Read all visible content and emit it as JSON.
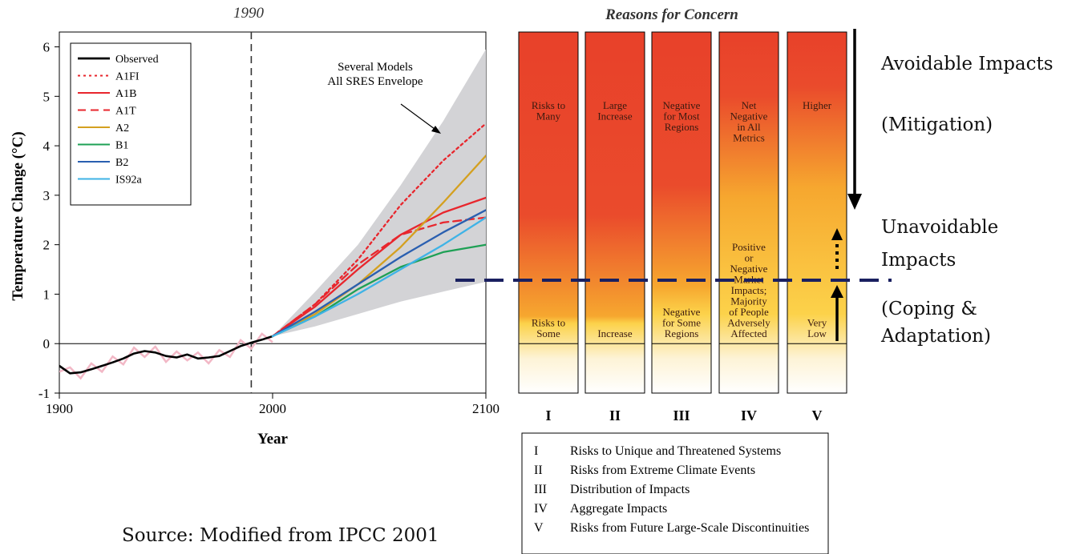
{
  "chart_data": [
    {
      "type": "line",
      "title": "1990",
      "xlabel": "Year",
      "ylabel": "Temperature Change (°C)",
      "xlim": [
        1900,
        2100
      ],
      "ylim": [
        -1,
        6.3
      ],
      "x_ticks": [
        "1900",
        "2000",
        "2100"
      ],
      "y_ticks": [
        "-1",
        "0",
        "1",
        "2",
        "3",
        "4",
        "5",
        "6"
      ],
      "vline_year": 1990,
      "grid": false,
      "legend_position": "top-left",
      "series": [
        {
          "name": "Observed",
          "color": "#000000",
          "dash": "solid",
          "x": [
            1900,
            1905,
            1910,
            1915,
            1920,
            1925,
            1930,
            1935,
            1940,
            1945,
            1950,
            1955,
            1960,
            1965,
            1970,
            1975,
            1980,
            1985,
            1990,
            1995,
            2000
          ],
          "y": [
            -0.45,
            -0.6,
            -0.58,
            -0.52,
            -0.45,
            -0.38,
            -0.3,
            -0.2,
            -0.15,
            -0.18,
            -0.25,
            -0.28,
            -0.22,
            -0.3,
            -0.28,
            -0.25,
            -0.15,
            -0.05,
            0.02,
            0.08,
            0.15
          ]
        },
        {
          "name": "A1FI",
          "color": "#e8262d",
          "dash": "dot",
          "x": [
            2000,
            2020,
            2040,
            2060,
            2080,
            2100
          ],
          "y": [
            0.15,
            0.8,
            1.7,
            2.8,
            3.7,
            4.45
          ]
        },
        {
          "name": "A1B",
          "color": "#e8262d",
          "dash": "solid",
          "x": [
            2000,
            2020,
            2040,
            2060,
            2080,
            2100
          ],
          "y": [
            0.15,
            0.75,
            1.5,
            2.2,
            2.65,
            2.95
          ]
        },
        {
          "name": "A1T",
          "color": "#e8262d",
          "dash": "dash",
          "x": [
            2000,
            2020,
            2040,
            2060,
            2080,
            2100
          ],
          "y": [
            0.15,
            0.8,
            1.6,
            2.2,
            2.45,
            2.55
          ]
        },
        {
          "name": "A2",
          "color": "#d4a020",
          "dash": "solid",
          "x": [
            2000,
            2020,
            2040,
            2060,
            2080,
            2100
          ],
          "y": [
            0.15,
            0.6,
            1.2,
            1.95,
            2.85,
            3.8
          ]
        },
        {
          "name": "B1",
          "color": "#1ea055",
          "dash": "solid",
          "x": [
            2000,
            2020,
            2040,
            2060,
            2080,
            2100
          ],
          "y": [
            0.15,
            0.55,
            1.1,
            1.55,
            1.85,
            2.0
          ]
        },
        {
          "name": "B2",
          "color": "#2a5fb0",
          "dash": "solid",
          "x": [
            2000,
            2020,
            2040,
            2060,
            2080,
            2100
          ],
          "y": [
            0.15,
            0.65,
            1.2,
            1.75,
            2.25,
            2.7
          ]
        },
        {
          "name": "IS92a",
          "color": "#3fb3e6",
          "dash": "solid",
          "x": [
            2000,
            2020,
            2040,
            2060,
            2080,
            2100
          ],
          "y": [
            0.15,
            0.55,
            1.0,
            1.5,
            2.0,
            2.55
          ]
        }
      ],
      "envelope": {
        "label": "Several Models All SRES Envelope",
        "label_lines": [
          "Several Models",
          "All SRES Envelope"
        ],
        "x": [
          2000,
          2020,
          2040,
          2060,
          2080,
          2100
        ],
        "upper": [
          0.15,
          1.05,
          2.0,
          3.2,
          4.5,
          5.95
        ],
        "lower": [
          0.15,
          0.35,
          0.6,
          0.85,
          1.05,
          1.25
        ]
      }
    },
    {
      "type": "table",
      "title": "Reasons for Concern",
      "ylim": [
        -1,
        6.3
      ],
      "columns": [
        {
          "numeral": "I",
          "upper_text": [
            "Risks to",
            "Many"
          ],
          "lower_text": [
            "Risks to",
            "Some"
          ],
          "red_to_year_value": 2.6
        },
        {
          "numeral": "II",
          "upper_text": [
            "Large",
            "Increase"
          ],
          "lower_text": [
            "Increase"
          ],
          "red_to_year_value": 2.6
        },
        {
          "numeral": "III",
          "upper_text": [
            "Negative",
            "for Most",
            "Regions"
          ],
          "lower_text": [
            "Negative",
            "for Some",
            "Regions"
          ],
          "red_to_year_value": 3.2
        },
        {
          "numeral": "IV",
          "upper_text": [
            "Net",
            "Negative",
            "in All",
            "Metrics"
          ],
          "lower_text": [
            "Positive",
            "or",
            "Negative",
            "Market",
            "Impacts;",
            "Majority",
            "of People",
            "Adversely",
            "Affected"
          ],
          "red_to_year_value": 5.0
        },
        {
          "numeral": "V",
          "upper_text": [
            "Higher"
          ],
          "lower_text": [
            "Very",
            "Low"
          ],
          "red_to_year_value": 5.2
        }
      ],
      "key": [
        {
          "numeral": "I",
          "text": "Risks to Unique and Threatened Systems"
        },
        {
          "numeral": "II",
          "text": "Risks from Extreme Climate Events"
        },
        {
          "numeral": "III",
          "text": "Distribution of Impacts"
        },
        {
          "numeral": "IV",
          "text": "Aggregate Impacts"
        },
        {
          "numeral": "V",
          "text": "Risks from Future Large-Scale Discontinuities"
        }
      ]
    }
  ],
  "annotations": {
    "avoidable": "Avoidable Impacts",
    "mitigation": "(Mitigation)",
    "unavoidable_line1": "Unavoidable",
    "unavoidable_line2": "Impacts",
    "coping_line1": "(Coping &",
    "coping_line2": "Adaptation)",
    "source": "Source: Modified from IPCC 2001",
    "threshold_color": "#1a2060"
  }
}
